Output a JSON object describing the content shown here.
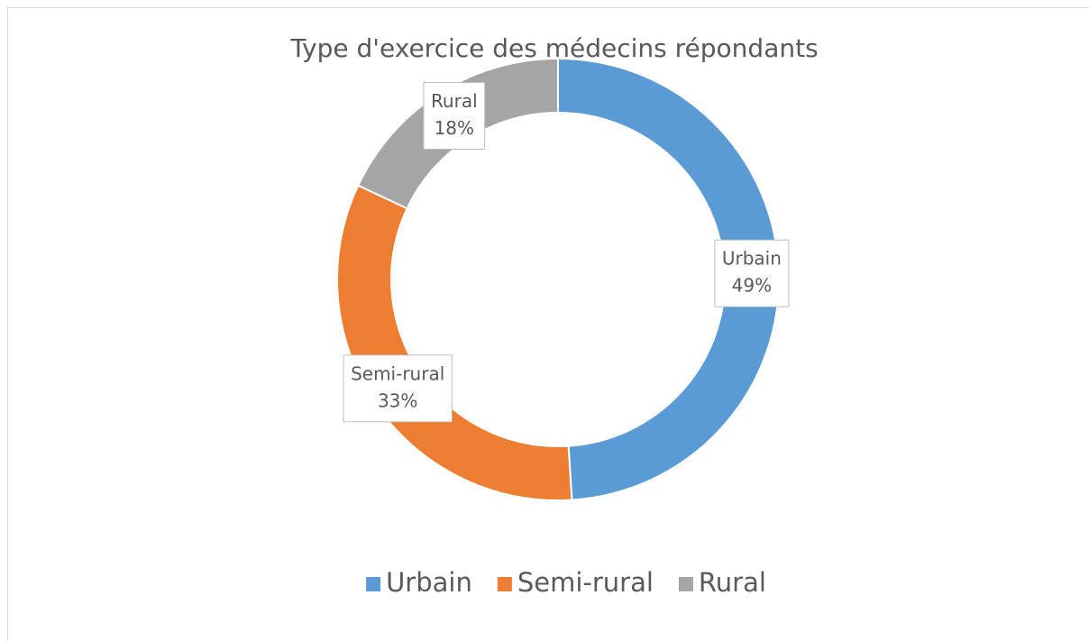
{
  "chart_data": {
    "type": "donut",
    "title": "Type d'exercice des médecins répondants",
    "categories": [
      "Urbain",
      "Semi-rural",
      "Rural"
    ],
    "values": [
      49,
      33,
      18
    ],
    "value_labels": [
      "49%",
      "33%",
      "18%"
    ],
    "colors": [
      "#5B9BD5",
      "#ED7D31",
      "#A5A5A5"
    ],
    "legend": "bottom"
  }
}
